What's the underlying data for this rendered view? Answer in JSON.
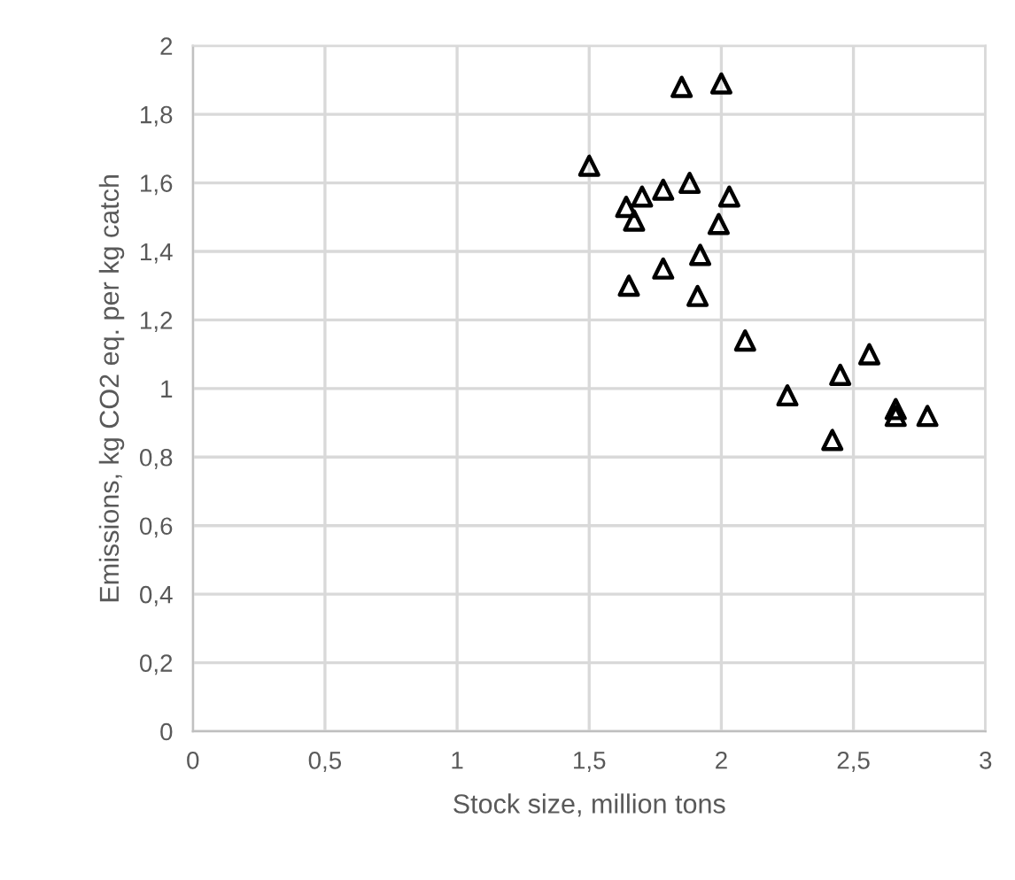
{
  "chart_data": {
    "type": "scatter",
    "xlabel": "Stock size, million tons",
    "ylabel": "Emissions, kg CO2 eq. per kg catch",
    "x": [
      1.85,
      2.0,
      1.5,
      1.88,
      1.78,
      1.7,
      1.64,
      2.03,
      1.67,
      1.99,
      1.92,
      1.78,
      1.65,
      1.91,
      2.09,
      2.56,
      2.45,
      2.25,
      2.66,
      2.66,
      2.78,
      2.42
    ],
    "series": [
      {
        "color": "#000000",
        "values": [
          1.88,
          1.89,
          1.65,
          1.6,
          1.58,
          1.56,
          1.53,
          1.56,
          1.49,
          1.48,
          1.39,
          1.35,
          1.3,
          1.27,
          1.14,
          1.1,
          1.04,
          0.98,
          0.94,
          0.92,
          0.92,
          0.85
        ]
      }
    ],
    "marker": "triangle",
    "xlim": [
      0,
      3
    ],
    "ylim": [
      0,
      2
    ],
    "xticks": [
      0,
      {
        "value": 0.5,
        "label": "0,5"
      },
      1,
      {
        "value": 1.5,
        "label": "1,5"
      },
      2,
      {
        "value": 2.5,
        "label": "2,5"
      },
      3
    ],
    "yticks": [
      0,
      {
        "value": 0.2,
        "label": "0,2"
      },
      {
        "value": 0.4,
        "label": "0,4"
      },
      {
        "value": 0.6,
        "label": "0,6"
      },
      {
        "value": 0.8,
        "label": "0,8"
      },
      1,
      {
        "value": 1.2,
        "label": "1,2"
      },
      {
        "value": 1.4,
        "label": "1,4"
      },
      {
        "value": 1.6,
        "label": "1,6"
      },
      {
        "value": 1.8,
        "label": "1,8"
      },
      2
    ],
    "grid": true
  }
}
